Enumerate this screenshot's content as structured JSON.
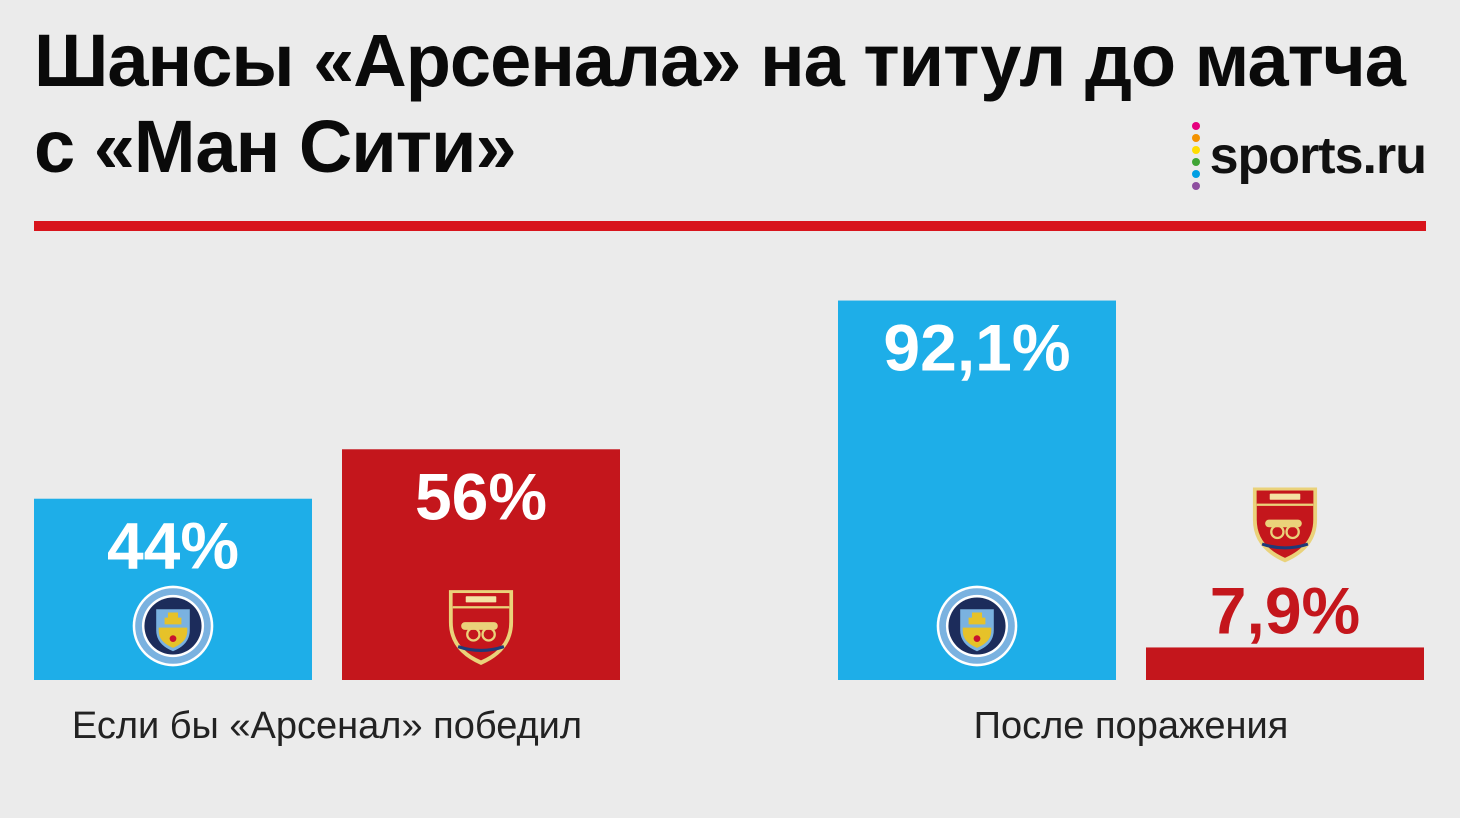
{
  "title": {
    "line1": "Шансы «Арсенала» на титул до матча",
    "line2": "с «Ман Сити»"
  },
  "logo": {
    "text": "sports.ru",
    "dot_colors": [
      "#e6007e",
      "#f39200",
      "#ffdd00",
      "#3fa535",
      "#009fe3",
      "#8e4fa0"
    ]
  },
  "colors": {
    "city": "#1eaee8",
    "arsenal": "#c4161c",
    "rule": "#d8141c",
    "background": "#ebebeb"
  },
  "icons": {
    "city": "manchester-city-crest-icon",
    "arsenal": "arsenal-crest-icon"
  },
  "chart_data": {
    "type": "bar",
    "categories": [
      "Если бы «Арсенал» победил",
      "После поражения"
    ],
    "series": [
      {
        "team": "city",
        "values": [
          44,
          92.1
        ],
        "labels": [
          "44%",
          "92,1%"
        ]
      },
      {
        "team": "arsenal",
        "values": [
          56,
          7.9
        ],
        "labels": [
          "56%",
          "7,9%"
        ]
      }
    ],
    "ylim": [
      0,
      100
    ],
    "grid": false,
    "legend": "none"
  }
}
